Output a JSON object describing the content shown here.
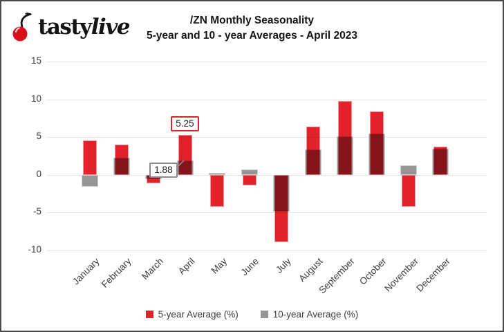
{
  "logo": {
    "brand_prefix": "tasty",
    "brand_suffix": "live"
  },
  "title": {
    "line1": "/ZN Monthly Seasonality",
    "line2": "5-year and 10 - year Averages  - April 2023"
  },
  "chart_data": {
    "type": "bar",
    "title": "/ZN Monthly Seasonality 5-year and 10-year Averages - April 2023",
    "categories": [
      "January",
      "February",
      "March",
      "April",
      "May",
      "June",
      "July",
      "August",
      "September",
      "October",
      "November",
      "December"
    ],
    "series": [
      {
        "name": "5-year Average (%)",
        "color": "#e1222b",
        "values": [
          4.6,
          4.0,
          -1.1,
          5.25,
          -4.2,
          -1.4,
          -8.9,
          6.4,
          9.8,
          8.4,
          -4.2,
          3.7
        ]
      },
      {
        "name": "10-year Average (%)",
        "color": "#969696",
        "values": [
          -1.6,
          2.3,
          -0.6,
          1.88,
          0.3,
          0.7,
          -4.9,
          3.4,
          5.1,
          5.5,
          1.3,
          3.5
        ]
      }
    ],
    "overlap_color": "#87141a",
    "yticks": [
      15,
      10,
      5,
      0,
      -5,
      -10
    ],
    "ylim": [
      -10,
      15
    ],
    "xlabel": "",
    "ylabel": "",
    "grid": true,
    "legend_position": "bottom",
    "annotations": [
      {
        "label": "5.25",
        "month_index": 3,
        "value": 5.25,
        "border_color": "#e1222b",
        "position": "above",
        "leader": false
      },
      {
        "label": "1.88",
        "month_index": 3,
        "value": 1.88,
        "border_color": "#8c8c8c",
        "position": "left",
        "leader": true,
        "leader_color": "#8c8c8c"
      }
    ]
  },
  "legend": {
    "items": [
      {
        "label": "5-year Average (%)",
        "color": "#e1222b"
      },
      {
        "label": "10-year Average (%)",
        "color": "#969696"
      }
    ]
  }
}
